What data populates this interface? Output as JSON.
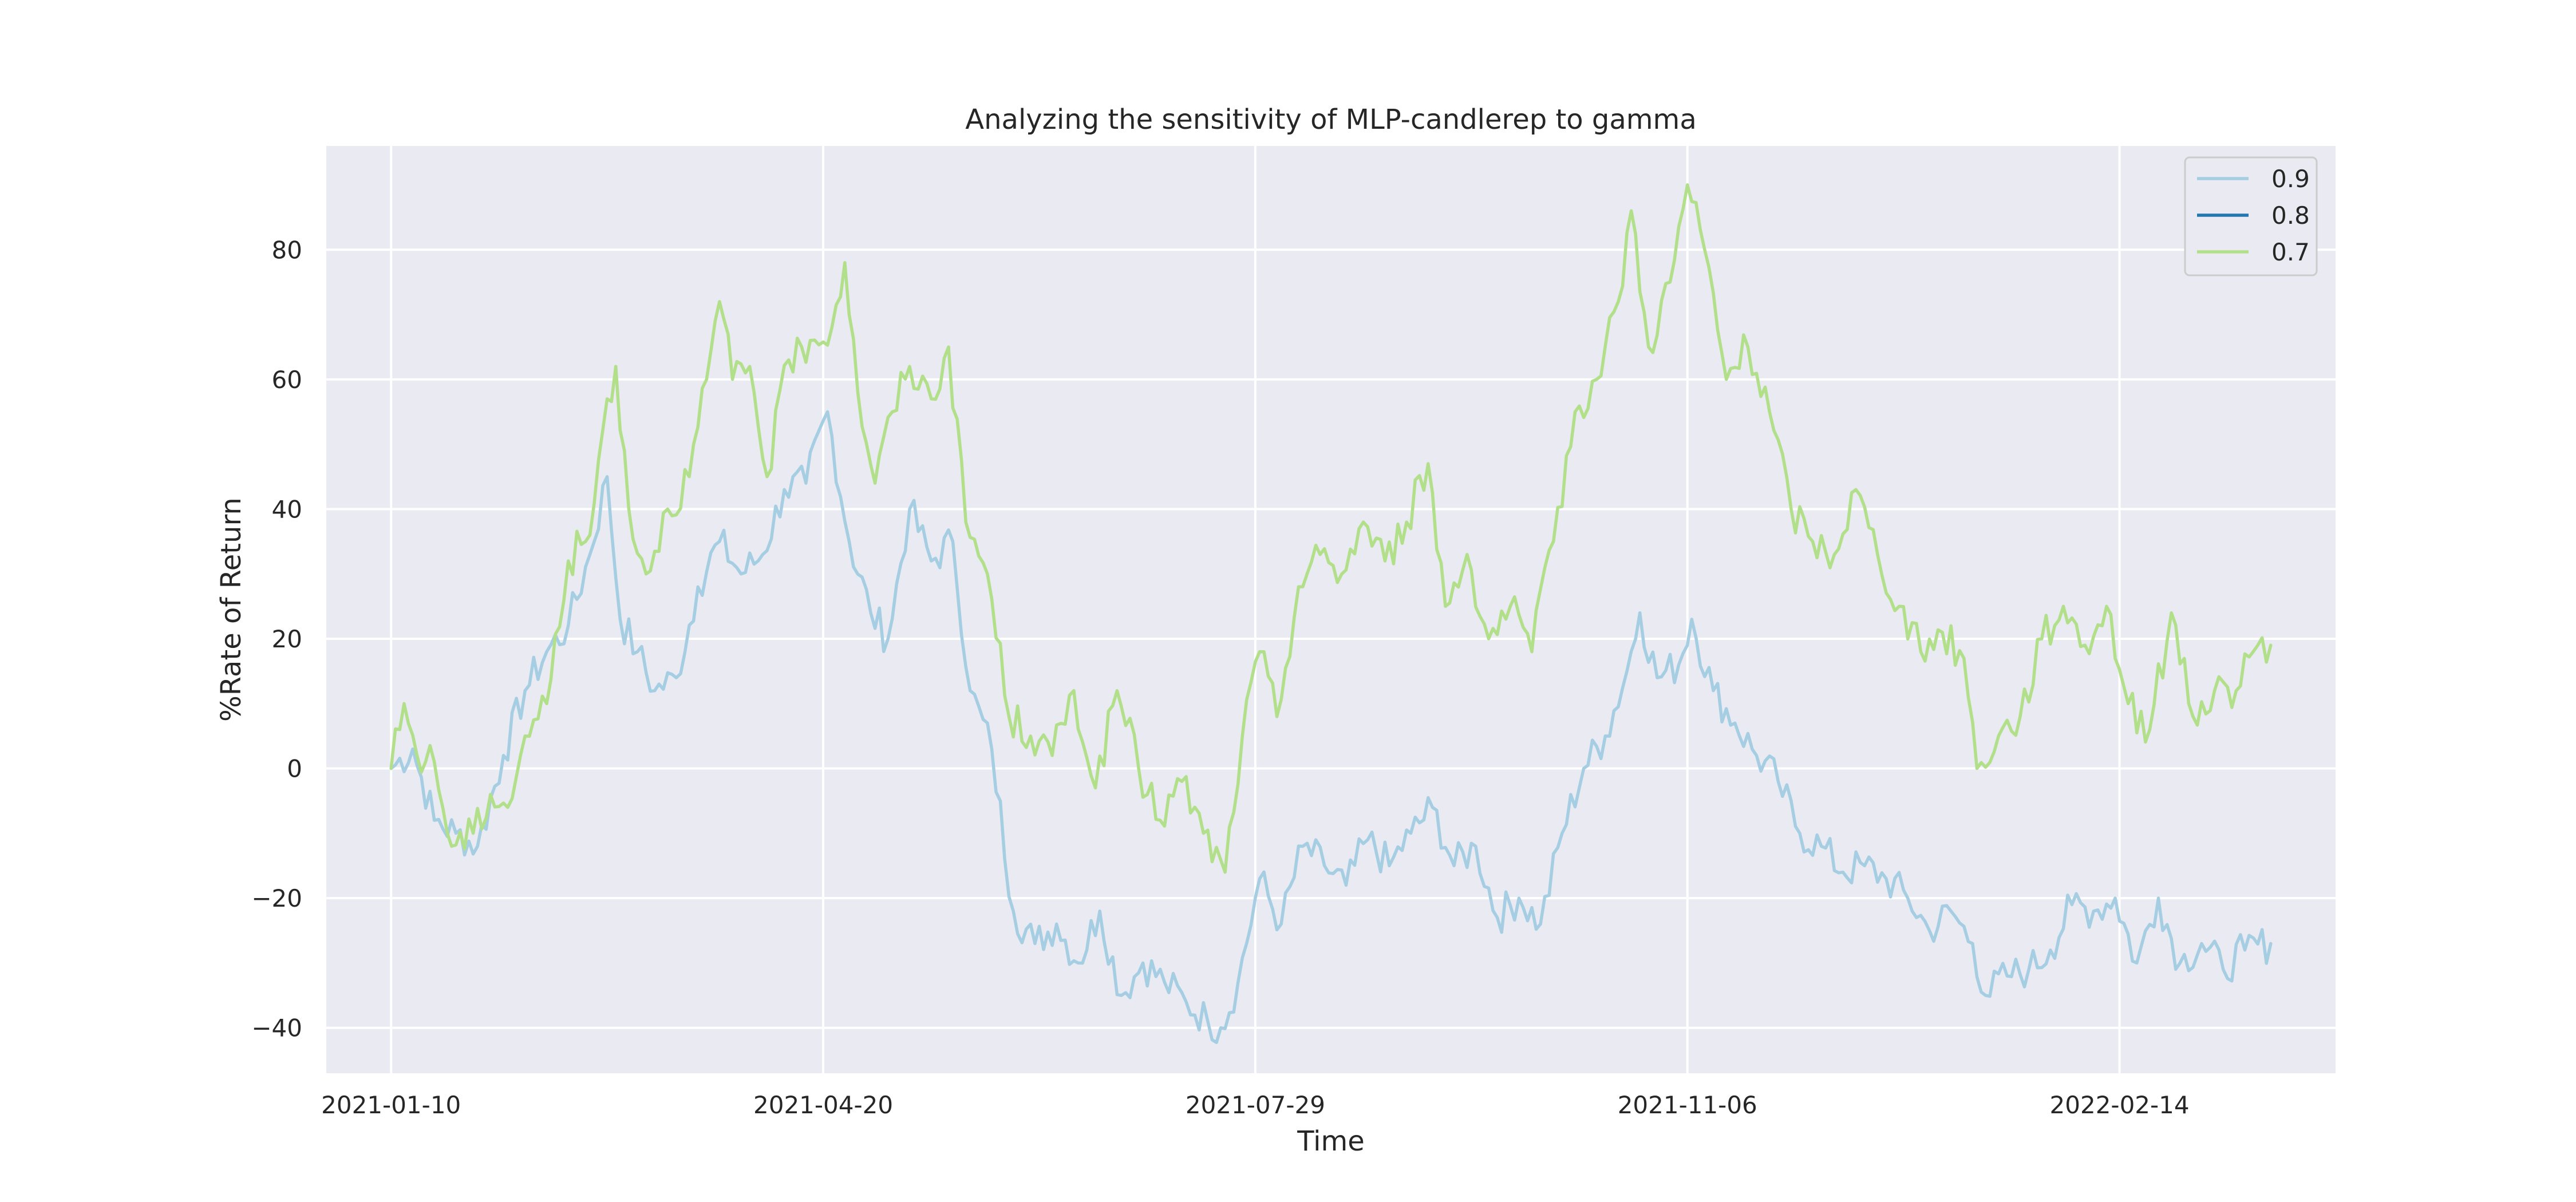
{
  "chart_data": {
    "type": "line",
    "title": "Analyzing the sensitivity of MLP-candlerep to gamma",
    "xlabel": "Time",
    "ylabel": "%Rate of Return",
    "x_start": "2021-01-10",
    "x_end": "2022-03-21",
    "x_range": [
      "2020-12-26",
      "2022-04-05"
    ],
    "ylim": [
      -47,
      96
    ],
    "x_ticks": [
      "2021-01-10",
      "2021-04-20",
      "2021-07-29",
      "2021-11-06",
      "2022-02-14"
    ],
    "y_ticks": [
      -40,
      -20,
      0,
      20,
      40,
      60,
      80
    ],
    "y_tick_labels": [
      "−40",
      "−20",
      "0",
      "20",
      "40",
      "60",
      "80"
    ],
    "grid": true,
    "legend": "top-right",
    "colors": {
      "background": "#eaeaf2",
      "grid": "#ffffff"
    },
    "series": [
      {
        "name": "0.9",
        "color": "#a6cee3",
        "points": [
          [
            "2021-01-10",
            0
          ],
          [
            "2021-01-15",
            3
          ],
          [
            "2021-01-20",
            -8
          ],
          [
            "2021-01-25",
            -10
          ],
          [
            "2021-01-30",
            -12
          ],
          [
            "2021-02-05",
            2
          ],
          [
            "2021-02-10",
            12
          ],
          [
            "2021-02-15",
            18
          ],
          [
            "2021-02-20",
            22
          ],
          [
            "2021-02-25",
            33
          ],
          [
            "2021-03-01",
            45
          ],
          [
            "2021-03-04",
            23
          ],
          [
            "2021-03-08",
            18
          ],
          [
            "2021-03-12",
            12
          ],
          [
            "2021-03-17",
            14
          ],
          [
            "2021-03-22",
            28
          ],
          [
            "2021-03-27",
            35
          ],
          [
            "2021-04-01",
            30
          ],
          [
            "2021-04-06",
            33
          ],
          [
            "2021-04-11",
            43
          ],
          [
            "2021-04-16",
            44
          ],
          [
            "2021-04-21",
            55
          ],
          [
            "2021-04-26",
            35
          ],
          [
            "2021-05-01",
            24
          ],
          [
            "2021-05-05",
            20
          ],
          [
            "2021-05-10",
            40
          ],
          [
            "2021-05-15",
            32
          ],
          [
            "2021-05-20",
            35
          ],
          [
            "2021-05-24",
            12
          ],
          [
            "2021-05-29",
            3
          ],
          [
            "2021-06-03",
            -22
          ],
          [
            "2021-06-08",
            -27
          ],
          [
            "2021-06-13",
            -24
          ],
          [
            "2021-06-18",
            -30
          ],
          [
            "2021-06-23",
            -22
          ],
          [
            "2021-06-28",
            -35
          ],
          [
            "2021-07-03",
            -30
          ],
          [
            "2021-07-08",
            -33
          ],
          [
            "2021-07-13",
            -36
          ],
          [
            "2021-07-18",
            -39
          ],
          [
            "2021-07-21",
            -40
          ],
          [
            "2021-07-25",
            -33
          ],
          [
            "2021-07-30",
            -17
          ],
          [
            "2021-08-04",
            -24
          ],
          [
            "2021-08-09",
            -12
          ],
          [
            "2021-08-14",
            -15
          ],
          [
            "2021-08-19",
            -18
          ],
          [
            "2021-08-24",
            -11
          ],
          [
            "2021-08-29",
            -15
          ],
          [
            "2021-09-03",
            -10
          ],
          [
            "2021-09-08",
            -6
          ],
          [
            "2021-09-13",
            -15
          ],
          [
            "2021-09-18",
            -12
          ],
          [
            "2021-09-23",
            -23
          ],
          [
            "2021-09-28",
            -20
          ],
          [
            "2021-10-03",
            -24
          ],
          [
            "2021-10-08",
            -10
          ],
          [
            "2021-10-13",
            0
          ],
          [
            "2021-10-18",
            5
          ],
          [
            "2021-10-23",
            15
          ],
          [
            "2021-10-26",
            24
          ],
          [
            "2021-10-30",
            14
          ],
          [
            "2021-11-04",
            16
          ],
          [
            "2021-11-07",
            23
          ],
          [
            "2021-11-12",
            12
          ],
          [
            "2021-11-17",
            7
          ],
          [
            "2021-11-22",
            2
          ],
          [
            "2021-11-27",
            -2
          ],
          [
            "2021-12-02",
            -10
          ],
          [
            "2021-12-07",
            -12
          ],
          [
            "2021-12-12",
            -16
          ],
          [
            "2021-12-17",
            -15
          ],
          [
            "2021-12-22",
            -17
          ],
          [
            "2021-12-27",
            -20
          ],
          [
            "2022-01-01",
            -25
          ],
          [
            "2022-01-06",
            -22
          ],
          [
            "2022-01-11",
            -27
          ],
          [
            "2022-01-14",
            -35
          ],
          [
            "2022-01-19",
            -32
          ],
          [
            "2022-01-24",
            -31
          ],
          [
            "2022-01-29",
            -28
          ],
          [
            "2022-02-03",
            -21
          ],
          [
            "2022-02-08",
            -22
          ],
          [
            "2022-02-13",
            -20
          ],
          [
            "2022-02-18",
            -30
          ],
          [
            "2022-02-23",
            -20
          ],
          [
            "2022-02-28",
            -30
          ],
          [
            "2022-03-05",
            -27
          ],
          [
            "2022-03-10",
            -31
          ],
          [
            "2022-03-15",
            -28
          ],
          [
            "2022-03-21",
            -27
          ]
        ]
      },
      {
        "name": "0.8",
        "color": "#1f78b4",
        "points": []
      },
      {
        "name": "0.7",
        "color": "#b2df8a",
        "points": [
          [
            "2021-01-10",
            0
          ],
          [
            "2021-01-13",
            10
          ],
          [
            "2021-01-16",
            2
          ],
          [
            "2021-01-20",
            1
          ],
          [
            "2021-01-24",
            -12
          ],
          [
            "2021-01-29",
            -10
          ],
          [
            "2021-02-02",
            -4
          ],
          [
            "2021-02-06",
            -6
          ],
          [
            "2021-02-10",
            5
          ],
          [
            "2021-02-15",
            10
          ],
          [
            "2021-02-20",
            32
          ],
          [
            "2021-02-25",
            36
          ],
          [
            "2021-03-01",
            57
          ],
          [
            "2021-03-03",
            62
          ],
          [
            "2021-03-06",
            40
          ],
          [
            "2021-03-10",
            30
          ],
          [
            "2021-03-15",
            40
          ],
          [
            "2021-03-20",
            45
          ],
          [
            "2021-03-24",
            60
          ],
          [
            "2021-03-27",
            72
          ],
          [
            "2021-03-30",
            60
          ],
          [
            "2021-04-03",
            62
          ],
          [
            "2021-04-07",
            45
          ],
          [
            "2021-04-12",
            63
          ],
          [
            "2021-04-17",
            66
          ],
          [
            "2021-04-22",
            68
          ],
          [
            "2021-04-25",
            78
          ],
          [
            "2021-04-28",
            58
          ],
          [
            "2021-05-02",
            44
          ],
          [
            "2021-05-06",
            55
          ],
          [
            "2021-05-10",
            62
          ],
          [
            "2021-05-15",
            57
          ],
          [
            "2021-05-19",
            65
          ],
          [
            "2021-05-23",
            38
          ],
          [
            "2021-05-28",
            30
          ],
          [
            "2021-06-02",
            8
          ],
          [
            "2021-06-07",
            5
          ],
          [
            "2021-06-12",
            2
          ],
          [
            "2021-06-17",
            12
          ],
          [
            "2021-06-22",
            -3
          ],
          [
            "2021-06-27",
            12
          ],
          [
            "2021-07-02",
            0
          ],
          [
            "2021-07-07",
            -8
          ],
          [
            "2021-07-12",
            -2
          ],
          [
            "2021-07-17",
            -10
          ],
          [
            "2021-07-22",
            -16
          ],
          [
            "2021-07-26",
            5
          ],
          [
            "2021-07-30",
            18
          ],
          [
            "2021-08-03",
            8
          ],
          [
            "2021-08-08",
            28
          ],
          [
            "2021-08-13",
            33
          ],
          [
            "2021-08-18",
            30
          ],
          [
            "2021-08-23",
            38
          ],
          [
            "2021-08-28",
            32
          ],
          [
            "2021-09-02",
            38
          ],
          [
            "2021-09-07",
            47
          ],
          [
            "2021-09-11",
            25
          ],
          [
            "2021-09-16",
            33
          ],
          [
            "2021-09-21",
            20
          ],
          [
            "2021-09-26",
            25
          ],
          [
            "2021-10-01",
            18
          ],
          [
            "2021-10-06",
            35
          ],
          [
            "2021-10-11",
            55
          ],
          [
            "2021-10-16",
            60
          ],
          [
            "2021-10-21",
            72
          ],
          [
            "2021-10-24",
            86
          ],
          [
            "2021-10-28",
            65
          ],
          [
            "2021-11-02",
            75
          ],
          [
            "2021-11-06",
            90
          ],
          [
            "2021-11-10",
            80
          ],
          [
            "2021-11-15",
            60
          ],
          [
            "2021-11-20",
            65
          ],
          [
            "2021-11-25",
            55
          ],
          [
            "2021-11-30",
            40
          ],
          [
            "2021-12-05",
            35
          ],
          [
            "2021-12-10",
            33
          ],
          [
            "2021-12-15",
            43
          ],
          [
            "2021-12-20",
            33
          ],
          [
            "2021-12-25",
            25
          ],
          [
            "2021-12-30",
            18
          ],
          [
            "2022-01-04",
            21
          ],
          [
            "2022-01-09",
            17
          ],
          [
            "2022-01-12",
            0
          ],
          [
            "2022-01-17",
            5
          ],
          [
            "2022-01-22",
            8
          ],
          [
            "2022-01-27",
            20
          ],
          [
            "2022-02-01",
            25
          ],
          [
            "2022-02-06",
            19
          ],
          [
            "2022-02-11",
            25
          ],
          [
            "2022-02-16",
            10
          ],
          [
            "2022-02-21",
            6
          ],
          [
            "2022-02-26",
            24
          ],
          [
            "2022-03-03",
            8
          ],
          [
            "2022-03-08",
            12
          ],
          [
            "2022-03-13",
            12
          ],
          [
            "2022-03-18",
            19
          ],
          [
            "2022-03-21",
            19
          ]
        ]
      }
    ]
  }
}
